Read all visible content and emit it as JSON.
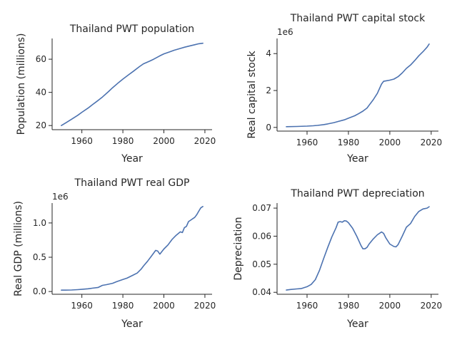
{
  "figure": {
    "line_color": "#4c72b0"
  },
  "chart_data": [
    {
      "type": "line",
      "title": "Thailand PWT population",
      "xlabel": "Year",
      "ylabel": "Population (millions)",
      "offset_label": "",
      "xlim": [
        1945.5,
        2023.5
      ],
      "ylim": [
        17.5,
        72.5
      ],
      "xticks": [
        1960,
        1980,
        2000,
        2020
      ],
      "xtick_labels": [
        "1960",
        "1980",
        "2000",
        "2020"
      ],
      "yticks": [
        20,
        40,
        60
      ],
      "ytick_labels": [
        "20",
        "40",
        "60"
      ],
      "series": [
        {
          "name": "population",
          "x": [
            1950,
            1952,
            1955,
            1958,
            1960,
            1963,
            1965,
            1968,
            1970,
            1973,
            1975,
            1978,
            1980,
            1983,
            1985,
            1988,
            1990,
            1993,
            1995,
            1998,
            2000,
            2003,
            2005,
            2008,
            2010,
            2013,
            2015,
            2017,
            2019
          ],
          "y": [
            20.0,
            21.5,
            23.8,
            26.2,
            28.0,
            30.5,
            32.4,
            35.2,
            37.2,
            40.5,
            42.8,
            46.0,
            48.0,
            50.8,
            52.6,
            55.5,
            57.2,
            58.8,
            60.0,
            62.0,
            63.2,
            64.5,
            65.4,
            66.5,
            67.2,
            68.1,
            68.7,
            69.3,
            69.6
          ]
        }
      ]
    },
    {
      "type": "line",
      "title": "Thailand PWT capital stock",
      "xlabel": "Year",
      "ylabel": "Real capital stock",
      "offset_label": "1e6",
      "xlim": [
        1945.5,
        2023.5
      ],
      "ylim": [
        -0.2,
        4.82
      ],
      "xticks": [
        1960,
        1980,
        2000,
        2020
      ],
      "xtick_labels": [
        "1960",
        "1980",
        "2000",
        "2020"
      ],
      "yticks": [
        0,
        2,
        4
      ],
      "ytick_labels": [
        "0",
        "2",
        "4"
      ],
      "series": [
        {
          "name": "capital stock",
          "x": [
            1950,
            1955,
            1960,
            1963,
            1965,
            1968,
            1970,
            1973,
            1975,
            1978,
            1980,
            1983,
            1985,
            1987,
            1989,
            1990,
            1992,
            1994,
            1996,
            1997,
            1998,
            2000,
            2002,
            2004,
            2006,
            2008,
            2010,
            2012,
            2014,
            2016,
            2018,
            2019
          ],
          "y": [
            0.04,
            0.05,
            0.07,
            0.09,
            0.11,
            0.15,
            0.19,
            0.26,
            0.32,
            0.41,
            0.5,
            0.63,
            0.75,
            0.88,
            1.05,
            1.2,
            1.5,
            1.85,
            2.35,
            2.5,
            2.52,
            2.56,
            2.62,
            2.75,
            2.95,
            3.2,
            3.38,
            3.62,
            3.88,
            4.1,
            4.35,
            4.52
          ]
        }
      ]
    },
    {
      "type": "line",
      "title": "Thailand PWT real GDP",
      "xlabel": "Year",
      "ylabel": "Real GDP (millions)",
      "offset_label": "1e6",
      "xlim": [
        1945.5,
        2023.5
      ],
      "ylim": [
        -0.04,
        1.29
      ],
      "xticks": [
        1960,
        1980,
        2000,
        2020
      ],
      "xtick_labels": [
        "1960",
        "1980",
        "2000",
        "2020"
      ],
      "yticks": [
        0.0,
        0.5,
        1.0
      ],
      "ytick_labels": [
        "0.0",
        "0.5",
        "1.0"
      ],
      "series": [
        {
          "name": "real GDP",
          "x": [
            1950,
            1952,
            1955,
            1958,
            1960,
            1963,
            1965,
            1968,
            1970,
            1972,
            1975,
            1977,
            1980,
            1982,
            1985,
            1987,
            1989,
            1990,
            1992,
            1994,
            1996,
            1997,
            1998,
            2000,
            2002,
            2004,
            2006,
            2008,
            2009,
            2010,
            2011,
            2012,
            2013,
            2014,
            2015,
            2016,
            2017,
            2018,
            2019
          ],
          "y": [
            0.02,
            0.02,
            0.022,
            0.028,
            0.032,
            0.04,
            0.048,
            0.06,
            0.09,
            0.1,
            0.12,
            0.145,
            0.175,
            0.195,
            0.24,
            0.27,
            0.33,
            0.37,
            0.44,
            0.52,
            0.6,
            0.59,
            0.545,
            0.62,
            0.68,
            0.76,
            0.82,
            0.87,
            0.86,
            0.93,
            0.95,
            1.02,
            1.04,
            1.06,
            1.08,
            1.12,
            1.17,
            1.22,
            1.24
          ]
        }
      ]
    },
    {
      "type": "line",
      "title": "Thailand PWT depreciation",
      "xlabel": "Year",
      "ylabel": "Depreciation",
      "offset_label": "",
      "xlim": [
        1945.5,
        2023.5
      ],
      "ylim": [
        0.0393,
        0.0718
      ],
      "xticks": [
        1960,
        1980,
        2000,
        2020
      ],
      "xtick_labels": [
        "1960",
        "1980",
        "2000",
        "2020"
      ],
      "yticks": [
        0.04,
        0.05,
        0.06,
        0.07
      ],
      "ytick_labels": [
        "0.04",
        "0.05",
        "0.06",
        "0.07"
      ],
      "series": [
        {
          "name": "depreciation",
          "x": [
            1950,
            1952,
            1955,
            1957,
            1958,
            1960,
            1962,
            1964,
            1966,
            1968,
            1970,
            1972,
            1974,
            1975,
            1976,
            1977,
            1978,
            1979,
            1980,
            1982,
            1984,
            1986,
            1987,
            1988,
            1989,
            1990,
            1992,
            1994,
            1996,
            1997,
            1998,
            2000,
            2002,
            2003,
            2004,
            2006,
            2008,
            2010,
            2012,
            2014,
            2016,
            2018,
            2019
          ],
          "y": [
            0.0408,
            0.041,
            0.0412,
            0.0413,
            0.0415,
            0.042,
            0.0428,
            0.0445,
            0.0478,
            0.052,
            0.056,
            0.0598,
            0.063,
            0.065,
            0.0652,
            0.065,
            0.0655,
            0.0654,
            0.0648,
            0.0628,
            0.06,
            0.0568,
            0.0555,
            0.0555,
            0.056,
            0.0572,
            0.059,
            0.0605,
            0.0615,
            0.061,
            0.0595,
            0.0572,
            0.0563,
            0.0562,
            0.057,
            0.06,
            0.0632,
            0.0645,
            0.067,
            0.0688,
            0.0697,
            0.07,
            0.0705
          ]
        }
      ]
    }
  ]
}
